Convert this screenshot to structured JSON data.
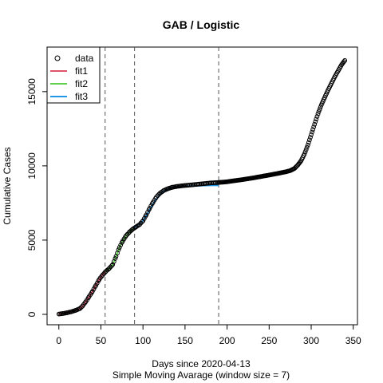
{
  "chart_data": {
    "type": "scatter",
    "title": "GAB / Logistic",
    "xlabel": "Days since 2020-04-13",
    "xlabel2": "Simple Moving Avarage (window size = 7)",
    "ylabel": "Cumulative Cases",
    "xlim": [
      -14,
      355
    ],
    "ylim": [
      -700,
      18000
    ],
    "xticks": [
      0,
      50,
      100,
      150,
      200,
      250,
      300,
      350
    ],
    "yticks": [
      0,
      5000,
      10000,
      15000
    ],
    "vlines": [
      55,
      90,
      190
    ],
    "legend_position": "top-left",
    "legend": [
      {
        "label": "data",
        "kind": "point"
      },
      {
        "label": "fit1",
        "kind": "line",
        "color": "#DF536B"
      },
      {
        "label": "fit2",
        "kind": "line",
        "color": "#61D04F"
      },
      {
        "label": "fit3",
        "kind": "line",
        "color": "#2297E6"
      }
    ],
    "data_series": {
      "name": "data",
      "x": [
        0,
        5,
        10,
        15,
        20,
        25,
        28,
        32,
        36,
        40,
        44,
        48,
        52,
        56,
        60,
        64,
        68,
        72,
        76,
        80,
        84,
        88,
        92,
        96,
        100,
        104,
        108,
        112,
        116,
        120,
        125,
        130,
        135,
        140,
        145,
        150,
        160,
        170,
        180,
        190,
        200,
        210,
        220,
        230,
        240,
        250,
        260,
        270,
        275,
        280,
        284,
        288,
        292,
        296,
        300,
        304,
        308,
        312,
        316,
        320,
        324,
        328,
        332,
        336,
        340
      ],
      "y": [
        20,
        60,
        110,
        180,
        270,
        390,
        550,
        850,
        1200,
        1550,
        1950,
        2350,
        2650,
        2900,
        3100,
        3350,
        3900,
        4500,
        4950,
        5300,
        5550,
        5750,
        5900,
        6050,
        6300,
        6700,
        7150,
        7550,
        7900,
        8150,
        8350,
        8470,
        8560,
        8610,
        8650,
        8680,
        8730,
        8790,
        8850,
        8880,
        8930,
        9010,
        9090,
        9180,
        9280,
        9380,
        9490,
        9600,
        9680,
        9820,
        10050,
        10350,
        10800,
        11400,
        12100,
        12800,
        13500,
        14100,
        14600,
        15100,
        15550,
        16000,
        16400,
        16800,
        17100
      ]
    },
    "fits": [
      {
        "name": "fit1",
        "color": "#DF536B",
        "x": [
          0,
          5,
          10,
          15,
          20,
          25,
          30,
          35,
          40,
          45,
          50,
          55
        ],
        "y": [
          20,
          60,
          110,
          180,
          270,
          390,
          650,
          1100,
          1550,
          2050,
          2500,
          2900
        ]
      },
      {
        "name": "fit2",
        "color": "#61D04F",
        "x": [
          55,
          60,
          64,
          68,
          72,
          76,
          80,
          84,
          88,
          90
        ],
        "y": [
          2900,
          3100,
          3350,
          3900,
          4500,
          4950,
          5300,
          5550,
          5750,
          5850
        ]
      },
      {
        "name": "fit3",
        "color": "#2297E6",
        "x": [
          90,
          95,
          100,
          105,
          110,
          115,
          120,
          125,
          130,
          135,
          140,
          150,
          160,
          170,
          180,
          190
        ],
        "y": [
          5850,
          6050,
          6300,
          6750,
          7250,
          7700,
          8050,
          8300,
          8450,
          8530,
          8580,
          8620,
          8650,
          8670,
          8680,
          8690
        ]
      }
    ]
  }
}
